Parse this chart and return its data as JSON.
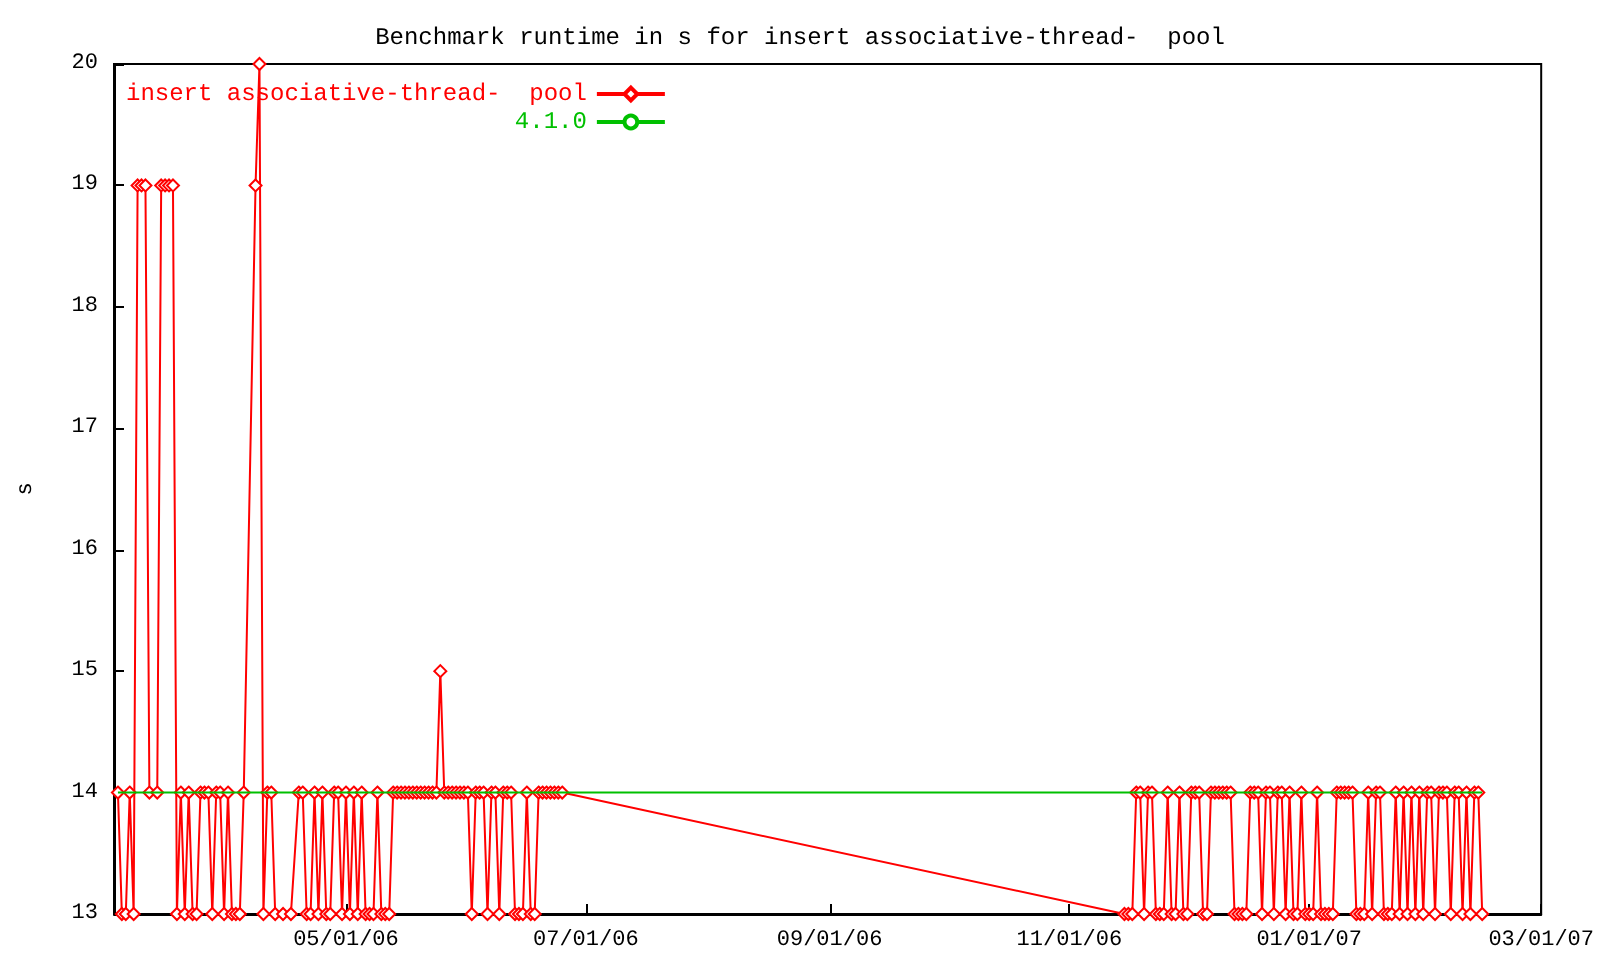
{
  "chart_data": {
    "type": "line",
    "title": "Benchmark runtime in s for insert associative-thread-  pool",
    "ylabel": "s",
    "xlim": [
      "2006-03-03",
      "2007-03-01"
    ],
    "xticks": [
      {
        "value": "2006-05-01",
        "label": "05/01/06"
      },
      {
        "value": "2006-07-01",
        "label": "07/01/06"
      },
      {
        "value": "2006-09-01",
        "label": "09/01/06"
      },
      {
        "value": "2006-11-01",
        "label": "11/01/06"
      },
      {
        "value": "2007-01-01",
        "label": "01/01/07"
      },
      {
        "value": "2007-03-01",
        "label": "03/01/07"
      }
    ],
    "ylim": [
      13,
      20
    ],
    "yticks": [
      13,
      14,
      15,
      16,
      17,
      18,
      19,
      20
    ],
    "grid": false,
    "legend": "top left",
    "series": [
      {
        "name": "insert associative-thread-  pool",
        "color": "#ff0000",
        "marker": "diamond",
        "x": [
          "2006-03-04",
          "2006-03-05",
          "2006-03-06",
          "2006-03-07",
          "2006-03-08",
          "2006-03-09",
          "2006-03-10",
          "2006-03-11",
          "2006-03-12",
          "2006-03-14",
          "2006-03-15",
          "2006-03-16",
          "2006-03-17",
          "2006-03-18",
          "2006-03-19",
          "2006-03-20",
          "2006-03-21",
          "2006-03-22",
          "2006-03-23",
          "2006-03-24",
          "2006-03-25",
          "2006-03-26",
          "2006-03-27",
          "2006-03-28",
          "2006-03-29",
          "2006-03-30",
          "2006-03-31",
          "2006-04-01",
          "2006-04-02",
          "2006-04-03",
          "2006-04-04",
          "2006-04-05",
          "2006-04-08",
          "2006-04-09",
          "2006-04-10",
          "2006-04-11",
          "2006-04-12",
          "2006-04-13",
          "2006-04-15",
          "2006-04-17",
          "2006-04-19",
          "2006-04-20",
          "2006-04-21",
          "2006-04-22",
          "2006-04-23",
          "2006-04-24",
          "2006-04-25",
          "2006-04-26",
          "2006-04-27",
          "2006-04-28",
          "2006-04-29",
          "2006-04-30",
          "2006-05-01",
          "2006-05-02",
          "2006-05-03",
          "2006-05-04",
          "2006-05-05",
          "2006-05-06",
          "2006-05-07",
          "2006-05-08",
          "2006-05-09",
          "2006-05-10",
          "2006-05-11",
          "2006-05-12",
          "2006-05-13",
          "2006-05-14",
          "2006-05-15",
          "2006-05-16",
          "2006-05-17",
          "2006-05-18",
          "2006-05-19",
          "2006-05-20",
          "2006-05-21",
          "2006-05-22",
          "2006-05-23",
          "2006-05-24",
          "2006-05-25",
          "2006-05-26",
          "2006-05-27",
          "2006-05-28",
          "2006-05-29",
          "2006-05-30",
          "2006-05-31",
          "2006-06-01",
          "2006-06-02",
          "2006-06-03",
          "2006-06-04",
          "2006-06-05",
          "2006-06-06",
          "2006-06-07",
          "2006-06-08",
          "2006-06-09",
          "2006-06-10",
          "2006-06-11",
          "2006-06-12",
          "2006-06-13",
          "2006-06-14",
          "2006-06-15",
          "2006-06-16",
          "2006-06-17",
          "2006-06-18",
          "2006-06-19",
          "2006-06-20",
          "2006-06-21",
          "2006-06-22",
          "2006-06-23",
          "2006-06-24",
          "2006-06-25",
          "2006-11-15",
          "2006-11-16",
          "2006-11-17",
          "2006-11-18",
          "2006-11-19",
          "2006-11-20",
          "2006-11-21",
          "2006-11-22",
          "2006-11-23",
          "2006-11-24",
          "2006-11-25",
          "2006-11-26",
          "2006-11-27",
          "2006-11-28",
          "2006-11-29",
          "2006-11-30",
          "2006-12-01",
          "2006-12-02",
          "2006-12-03",
          "2006-12-04",
          "2006-12-05",
          "2006-12-06",
          "2006-12-07",
          "2006-12-08",
          "2006-12-09",
          "2006-12-10",
          "2006-12-11",
          "2006-12-12",
          "2006-12-13",
          "2006-12-14",
          "2006-12-15",
          "2006-12-16",
          "2006-12-17",
          "2006-12-18",
          "2006-12-19",
          "2006-12-20",
          "2006-12-21",
          "2006-12-22",
          "2006-12-23",
          "2006-12-24",
          "2006-12-25",
          "2006-12-26",
          "2006-12-27",
          "2006-12-28",
          "2006-12-29",
          "2006-12-30",
          "2006-12-31",
          "2007-01-01",
          "2007-01-02",
          "2007-01-03",
          "2007-01-04",
          "2007-01-05",
          "2007-01-06",
          "2007-01-07",
          "2007-01-08",
          "2007-01-09",
          "2007-01-10",
          "2007-01-11",
          "2007-01-12",
          "2007-01-13",
          "2007-01-14",
          "2007-01-15",
          "2007-01-16",
          "2007-01-17",
          "2007-01-18",
          "2007-01-19",
          "2007-01-20",
          "2007-01-21",
          "2007-01-22",
          "2007-01-23",
          "2007-01-24",
          "2007-01-25",
          "2007-01-26",
          "2007-01-27",
          "2007-01-28",
          "2007-01-29",
          "2007-01-30",
          "2007-01-31",
          "2007-02-01",
          "2007-02-02",
          "2007-02-03",
          "2007-02-04",
          "2007-02-05",
          "2007-02-06",
          "2007-02-07",
          "2007-02-08",
          "2007-02-09",
          "2007-02-10",
          "2007-02-11",
          "2007-02-12",
          "2007-02-13",
          "2007-02-14"
        ],
        "values": [
          14,
          13,
          13,
          14,
          13,
          19,
          19,
          19,
          14,
          14,
          19,
          19,
          19,
          19,
          13,
          14,
          13,
          14,
          13,
          13,
          14,
          14,
          14,
          13,
          14,
          14,
          13,
          14,
          13,
          13,
          13,
          14,
          19,
          20,
          13,
          14,
          14,
          13,
          13,
          13,
          14,
          14,
          13,
          13,
          14,
          13,
          14,
          13,
          13,
          14,
          14,
          13,
          14,
          13,
          14,
          13,
          14,
          13,
          13,
          13,
          14,
          13,
          13,
          13,
          14,
          14,
          14,
          14,
          14,
          14,
          14,
          14,
          14,
          14,
          14,
          14,
          15,
          14,
          14,
          14,
          14,
          14,
          14,
          14,
          13,
          14,
          14,
          14,
          13,
          14,
          14,
          13,
          14,
          14,
          14,
          13,
          13,
          13,
          14,
          13,
          13,
          14,
          14,
          14,
          14,
          14,
          14,
          14,
          13,
          13,
          13,
          14,
          14,
          13,
          14,
          14,
          13,
          13,
          13,
          14,
          13,
          13,
          14,
          13,
          13,
          14,
          14,
          14,
          13,
          13,
          14,
          14,
          14,
          14,
          14,
          14,
          13,
          13,
          13,
          13,
          14,
          14,
          14,
          13,
          14,
          14,
          13,
          14,
          14,
          13,
          14,
          13,
          13,
          14,
          13,
          13,
          13,
          14,
          13,
          13,
          13,
          13,
          14,
          14,
          14,
          14,
          14,
          13,
          13,
          13,
          14,
          13,
          14,
          14,
          13,
          13,
          13,
          14,
          13,
          14,
          13,
          14,
          13,
          14,
          13,
          14,
          14,
          13,
          14,
          14,
          14,
          13,
          14,
          14,
          13,
          14,
          13,
          14,
          14,
          13
        ]
      },
      {
        "name": "4.1.0",
        "color": "#00c000",
        "marker": "none",
        "x": [
          "2006-03-04",
          "2007-02-14"
        ],
        "values": [
          14,
          14
        ]
      }
    ]
  }
}
